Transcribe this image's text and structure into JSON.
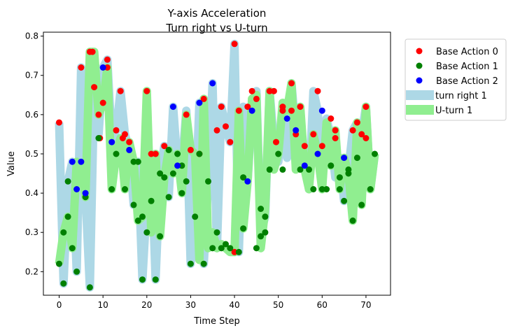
{
  "chart_data": {
    "type": "scatter",
    "title": "Y-axis Acceleration",
    "subtitle": "Turn right vs U-turn",
    "xlabel": "Time Step",
    "ylabel": "Value",
    "xlim": [
      -3.6,
      75.6
    ],
    "ylim": [
      0.14,
      0.81
    ],
    "xticks": [
      0,
      10,
      20,
      30,
      40,
      50,
      60,
      70
    ],
    "yticks": [
      0.2,
      0.3,
      0.4,
      0.5,
      0.6,
      0.7,
      0.8
    ],
    "grid": false,
    "legend_position": "outside-top-right",
    "bands": [
      {
        "name": "turn right 1",
        "color": "#add8e6",
        "values": [
          0.58,
          0.17,
          0.43,
          0.48,
          0.2,
          0.72,
          0.4,
          0.16,
          0.67,
          0.55,
          0.72,
          0.74,
          0.53,
          0.56,
          0.66,
          0.55,
          0.51,
          0.37,
          0.48,
          0.18,
          0.38,
          0.5,
          0.18,
          0.45,
          0.52,
          0.39,
          0.62,
          0.47,
          0.47,
          0.61,
          0.22,
          0.34,
          0.63,
          0.22,
          0.43,
          0.68,
          0.26,
          0.62,
          0.57,
          0.53,
          0.78,
          0.25,
          0.62,
          0.43,
          0.61,
          0.66,
          0.3,
          0.34,
          0.66,
          0.53,
          0.48,
          0.61,
          0.49,
          0.68,
          0.55,
          0.47,
          0.52,
          0.41,
          0.66,
          0.61,
          0.42,
          0.59,
          0.54,
          0.44,
          0.49,
          0.38,
          0.46,
          0.56,
          0.58,
          0.55,
          0.62,
          0.41,
          0.5
        ]
      },
      {
        "name": "U-turn 1",
        "color": "#90ee90",
        "values": [
          0.22,
          0.3,
          0.34,
          0.26,
          0.48,
          0.47,
          0.39,
          0.76,
          0.76,
          0.6,
          0.63,
          0.72,
          0.41,
          0.5,
          0.54,
          0.41,
          0.53,
          0.48,
          0.33,
          0.34,
          0.66,
          0.3,
          0.5,
          0.29,
          0.44,
          0.51,
          0.45,
          0.5,
          0.4,
          0.6,
          0.51,
          0.5,
          0.23,
          0.64,
          0.26,
          0.3,
          0.26,
          0.27,
          0.26,
          0.25,
          0.25,
          0.61,
          0.31,
          0.43,
          0.64,
          0.65,
          0.26,
          0.36,
          0.66,
          0.46,
          0.5,
          0.63,
          0.61,
          0.68,
          0.46,
          0.62,
          0.46,
          0.41,
          0.55,
          0.5,
          0.41,
          0.58,
          0.47,
          0.56,
          0.41,
          0.49,
          0.45,
          0.33,
          0.58,
          0.37,
          0.62,
          0.41,
          0.5
        ]
      }
    ],
    "series": [
      {
        "name": "Base Action 0",
        "color": "#ff0000",
        "points": [
          [
            0,
            0.58
          ],
          [
            5,
            0.72
          ],
          [
            7,
            0.76
          ],
          [
            7.6,
            0.76
          ],
          [
            8,
            0.67
          ],
          [
            9,
            0.6
          ],
          [
            9.3,
            0.54
          ],
          [
            10,
            0.63
          ],
          [
            11,
            0.74
          ],
          [
            11,
            0.72
          ],
          [
            13,
            0.56
          ],
          [
            14,
            0.66
          ],
          [
            14.5,
            0.54
          ],
          [
            15,
            0.55
          ],
          [
            16,
            0.53
          ],
          [
            20,
            0.66
          ],
          [
            21,
            0.5
          ],
          [
            22,
            0.5
          ],
          [
            24,
            0.52
          ],
          [
            29,
            0.6
          ],
          [
            30,
            0.51
          ],
          [
            32,
            0.5
          ],
          [
            33,
            0.64
          ],
          [
            36,
            0.56
          ],
          [
            37,
            0.62
          ],
          [
            38,
            0.57
          ],
          [
            39,
            0.53
          ],
          [
            40,
            0.25
          ],
          [
            40,
            0.78
          ],
          [
            41,
            0.61
          ],
          [
            43,
            0.62
          ],
          [
            44,
            0.66
          ],
          [
            45,
            0.64
          ],
          [
            48,
            0.66
          ],
          [
            49,
            0.66
          ],
          [
            49.5,
            0.53
          ],
          [
            51,
            0.62
          ],
          [
            51,
            0.61
          ],
          [
            53,
            0.68
          ],
          [
            53,
            0.61
          ],
          [
            54,
            0.55
          ],
          [
            55,
            0.62
          ],
          [
            56,
            0.52
          ],
          [
            58,
            0.55
          ],
          [
            59,
            0.66
          ],
          [
            60,
            0.52
          ],
          [
            62,
            0.59
          ],
          [
            63,
            0.56
          ],
          [
            63,
            0.54
          ],
          [
            67,
            0.56
          ],
          [
            68,
            0.58
          ],
          [
            69,
            0.55
          ],
          [
            70,
            0.54
          ],
          [
            70,
            0.62
          ]
        ]
      },
      {
        "name": "Base Action 1",
        "color": "#008000",
        "points": [
          [
            0,
            0.22
          ],
          [
            1,
            0.17
          ],
          [
            1,
            0.3
          ],
          [
            2,
            0.34
          ],
          [
            2,
            0.43
          ],
          [
            3,
            0.26
          ],
          [
            4,
            0.2
          ],
          [
            6,
            0.39
          ],
          [
            7,
            0.16
          ],
          [
            9,
            0.54
          ],
          [
            12,
            0.41
          ],
          [
            13,
            0.5
          ],
          [
            15,
            0.41
          ],
          [
            17,
            0.48
          ],
          [
            17,
            0.37
          ],
          [
            18,
            0.33
          ],
          [
            18,
            0.48
          ],
          [
            19,
            0.34
          ],
          [
            19,
            0.18
          ],
          [
            20,
            0.3
          ],
          [
            21,
            0.38
          ],
          [
            22,
            0.18
          ],
          [
            23,
            0.29
          ],
          [
            23,
            0.45
          ],
          [
            24,
            0.44
          ],
          [
            25,
            0.51
          ],
          [
            25,
            0.39
          ],
          [
            26,
            0.45
          ],
          [
            27,
            0.5
          ],
          [
            28,
            0.47
          ],
          [
            28,
            0.4
          ],
          [
            29,
            0.43
          ],
          [
            30,
            0.22
          ],
          [
            31,
            0.34
          ],
          [
            32,
            0.5
          ],
          [
            33,
            0.22
          ],
          [
            34,
            0.43
          ],
          [
            35,
            0.26
          ],
          [
            36,
            0.3
          ],
          [
            37,
            0.26
          ],
          [
            38,
            0.27
          ],
          [
            39,
            0.26
          ],
          [
            41,
            0.25
          ],
          [
            42,
            0.31
          ],
          [
            42,
            0.44
          ],
          [
            45,
            0.26
          ],
          [
            46,
            0.29
          ],
          [
            46,
            0.36
          ],
          [
            47,
            0.3
          ],
          [
            47,
            0.34
          ],
          [
            48,
            0.46
          ],
          [
            50,
            0.5
          ],
          [
            51,
            0.46
          ],
          [
            55,
            0.46
          ],
          [
            57,
            0.46
          ],
          [
            58,
            0.41
          ],
          [
            60,
            0.41
          ],
          [
            61,
            0.41
          ],
          [
            62,
            0.47
          ],
          [
            64,
            0.44
          ],
          [
            64,
            0.41
          ],
          [
            65,
            0.38
          ],
          [
            66,
            0.45
          ],
          [
            66,
            0.46
          ],
          [
            67,
            0.33
          ],
          [
            68,
            0.49
          ],
          [
            69,
            0.37
          ],
          [
            71,
            0.41
          ],
          [
            72,
            0.5
          ]
        ]
      },
      {
        "name": "Base Action 2",
        "color": "#0000ff",
        "points": [
          [
            3,
            0.48
          ],
          [
            4,
            0.41
          ],
          [
            5,
            0.48
          ],
          [
            6,
            0.4
          ],
          [
            10,
            0.72
          ],
          [
            12,
            0.53
          ],
          [
            16,
            0.51
          ],
          [
            26,
            0.62
          ],
          [
            27,
            0.47
          ],
          [
            32,
            0.63
          ],
          [
            35,
            0.68
          ],
          [
            43,
            0.43
          ],
          [
            44,
            0.61
          ],
          [
            52,
            0.59
          ],
          [
            54,
            0.56
          ],
          [
            56,
            0.47
          ],
          [
            59,
            0.5
          ],
          [
            60,
            0.61
          ],
          [
            65,
            0.49
          ]
        ]
      }
    ]
  },
  "legend": {
    "items": [
      {
        "label": "Base Action 0",
        "kind": "marker",
        "color": "#ff0000"
      },
      {
        "label": "Base Action 1",
        "kind": "marker",
        "color": "#008000"
      },
      {
        "label": "Base Action 2",
        "kind": "marker",
        "color": "#0000ff"
      },
      {
        "label": "turn right 1",
        "kind": "band",
        "color": "#add8e6"
      },
      {
        "label": "U-turn 1",
        "kind": "band",
        "color": "#90ee90"
      }
    ]
  }
}
